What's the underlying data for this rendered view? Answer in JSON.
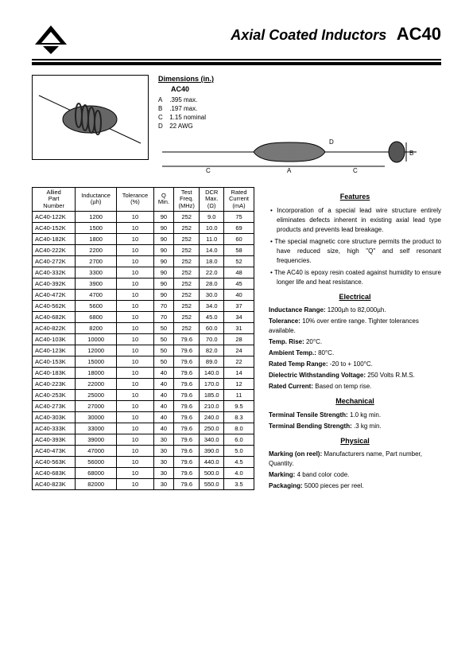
{
  "header": {
    "title": "Axial Coated Inductors",
    "code": "AC40"
  },
  "dimensions": {
    "heading": "Dimensions (in.)",
    "sub": "AC40",
    "rows": [
      {
        "label": "A",
        "value": ".395 max."
      },
      {
        "label": "B",
        "value": ".197 max."
      },
      {
        "label": "C",
        "value": "1.15 nominal"
      },
      {
        "label": "D",
        "value": "22 AWG"
      }
    ]
  },
  "table": {
    "headers": [
      "Allied Part Number",
      "Inductance (µh)",
      "Tolerance (%)",
      "Q Min.",
      "Test Freq. (MHz)",
      "DCR Max. (Ω)",
      "Rated Current (mA)"
    ],
    "rows": [
      [
        "AC40-122K",
        "1200",
        "10",
        "90",
        "252",
        "9.0",
        "75"
      ],
      [
        "AC40-152K",
        "1500",
        "10",
        "90",
        "252",
        "10.0",
        "69"
      ],
      [
        "AC40-182K",
        "1800",
        "10",
        "90",
        "252",
        "11.0",
        "60"
      ],
      [
        "AC40-222K",
        "2200",
        "10",
        "90",
        "252",
        "14.0",
        "58"
      ],
      [
        "AC40-272K",
        "2700",
        "10",
        "90",
        "252",
        "18.0",
        "52"
      ],
      [
        "AC40-332K",
        "3300",
        "10",
        "90",
        "252",
        "22.0",
        "48"
      ],
      [
        "AC40-392K",
        "3900",
        "10",
        "90",
        "252",
        "28.0",
        "45"
      ],
      [
        "AC40-472K",
        "4700",
        "10",
        "90",
        "252",
        "30.0",
        "40"
      ],
      [
        "AC40-562K",
        "5600",
        "10",
        "70",
        "252",
        "34.0",
        "37"
      ],
      [
        "AC40-682K",
        "6800",
        "10",
        "70",
        "252",
        "45.0",
        "34"
      ],
      [
        "AC40-822K",
        "8200",
        "10",
        "50",
        "252",
        "60.0",
        "31"
      ],
      [
        "AC40-103K",
        "10000",
        "10",
        "50",
        "79.6",
        "70.0",
        "28"
      ],
      [
        "AC40-123K",
        "12000",
        "10",
        "50",
        "79.6",
        "82.0",
        "24"
      ],
      [
        "AC40-153K",
        "15000",
        "10",
        "50",
        "79.6",
        "89.0",
        "22"
      ],
      [
        "AC40-183K",
        "18000",
        "10",
        "40",
        "79.6",
        "140.0",
        "14"
      ],
      [
        "AC40-223K",
        "22000",
        "10",
        "40",
        "79.6",
        "170.0",
        "12"
      ],
      [
        "AC40-253K",
        "25000",
        "10",
        "40",
        "79.6",
        "185.0",
        "11"
      ],
      [
        "AC40-273K",
        "27000",
        "10",
        "40",
        "79.6",
        "210.0",
        "9.5"
      ],
      [
        "AC40-303K",
        "30000",
        "10",
        "40",
        "79.6",
        "240.0",
        "8.3"
      ],
      [
        "AC40-333K",
        "33000",
        "10",
        "40",
        "79.6",
        "250.0",
        "8.0"
      ],
      [
        "AC40-393K",
        "39000",
        "10",
        "30",
        "79.6",
        "340.0",
        "6.0"
      ],
      [
        "AC40-473K",
        "47000",
        "10",
        "30",
        "79.6",
        "390.0",
        "5.0"
      ],
      [
        "AC40-563K",
        "56000",
        "10",
        "30",
        "79.6",
        "440.0",
        "4.5"
      ],
      [
        "AC40-683K",
        "68000",
        "10",
        "30",
        "79.6",
        "500.0",
        "4.0"
      ],
      [
        "AC40-823K",
        "82000",
        "10",
        "30",
        "79.6",
        "550.0",
        "3.5"
      ]
    ]
  },
  "features": {
    "heading": "Features",
    "items": [
      "Incorporation of a special lead wire structure entirely eliminates defects inherent in existing axial lead type products and prevents lead breakage.",
      "The special magnetic core structure permits the product to have reduced size, high \"Q\" and self resonant frequencies.",
      "The AC40 is epoxy resin coated against humidity to ensure longer life and heat resistance."
    ]
  },
  "electrical": {
    "heading": "Electrical",
    "lines": [
      {
        "label": "Inductance Range:",
        "value": "1200µh to 82,000µh."
      },
      {
        "label": "Tolerance:",
        "value": "10% over entire range. Tighter tolerances available."
      },
      {
        "label": "Temp. Rise:",
        "value": "20°C."
      },
      {
        "label": "Ambient Temp.:",
        "value": "80°C."
      },
      {
        "label": "Rated Temp Range:",
        "value": "-20 to + 100°C."
      },
      {
        "label": "Dielectric Withstanding Voltage:",
        "value": "250 Volts R.M.S."
      },
      {
        "label": "Rated Current:",
        "value": "Based on temp rise."
      }
    ]
  },
  "mechanical": {
    "heading": "Mechanical",
    "lines": [
      {
        "label": "Terminal Tensile Strength:",
        "value": "1.0 kg min."
      },
      {
        "label": "Terminal Bending Strength:",
        "value": ".3 kg min."
      }
    ]
  },
  "physical": {
    "heading": "Physical",
    "lines": [
      {
        "label": "Marking (on reel):",
        "value": "Manufacturers name, Part number, Quantity."
      },
      {
        "label": "Marking:",
        "value": "4 band color code."
      },
      {
        "label": "Packaging:",
        "value": "5000 pieces per reel."
      }
    ]
  },
  "colors": {
    "line": "#000000",
    "body": "#555555"
  }
}
